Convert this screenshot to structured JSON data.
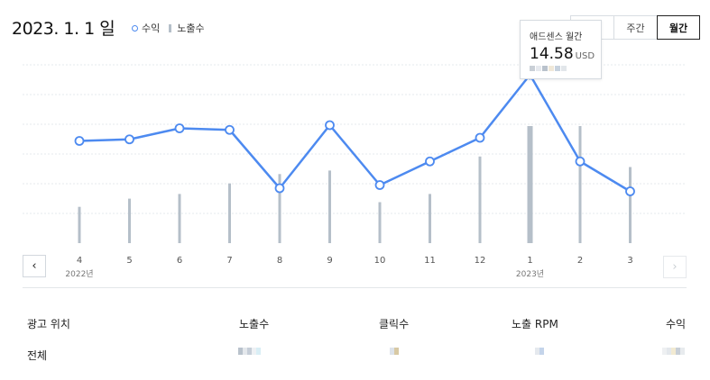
{
  "header": {
    "date": "2023. 1. 1 일",
    "legend": {
      "revenue": "수익",
      "impressions": "노출수"
    }
  },
  "period_tabs": [
    {
      "label": "",
      "active": false
    },
    {
      "label": "주간",
      "active": false
    },
    {
      "label": "월간",
      "active": true
    }
  ],
  "tooltip": {
    "title": "애드센스 월간",
    "value": "14.58",
    "unit": "USD"
  },
  "chart_data": {
    "type": "line",
    "categories": [
      "4",
      "5",
      "6",
      "7",
      "8",
      "9",
      "10",
      "11",
      "12",
      "1",
      "2",
      "3"
    ],
    "year_labels": [
      {
        "label": "2022년",
        "at": "4"
      },
      {
        "label": "2023년",
        "at": "1"
      }
    ],
    "series": [
      {
        "name": "수익",
        "kind": "line",
        "color": "#4d8af0",
        "values": [
          0.58,
          0.59,
          0.66,
          0.65,
          0.28,
          0.68,
          0.3,
          0.45,
          0.6,
          1.0,
          0.45,
          0.26
        ]
      },
      {
        "name": "노출수",
        "kind": "bar",
        "color": "#b5bfc9",
        "values": [
          0.31,
          0.38,
          0.42,
          0.51,
          0.59,
          0.62,
          0.35,
          0.42,
          0.74,
          1.0,
          1.0,
          0.65
        ]
      }
    ],
    "highlight_index": 9,
    "grid": true
  },
  "table": {
    "headers": [
      "광고 위치",
      "노출수",
      "클릭수",
      "노출 RPM",
      "수익"
    ],
    "rows": [
      {
        "label": "전체"
      }
    ]
  },
  "colors": {
    "line": "#4d8af0",
    "bar": "#b5bfc9",
    "grid": "#e6e9ed"
  }
}
